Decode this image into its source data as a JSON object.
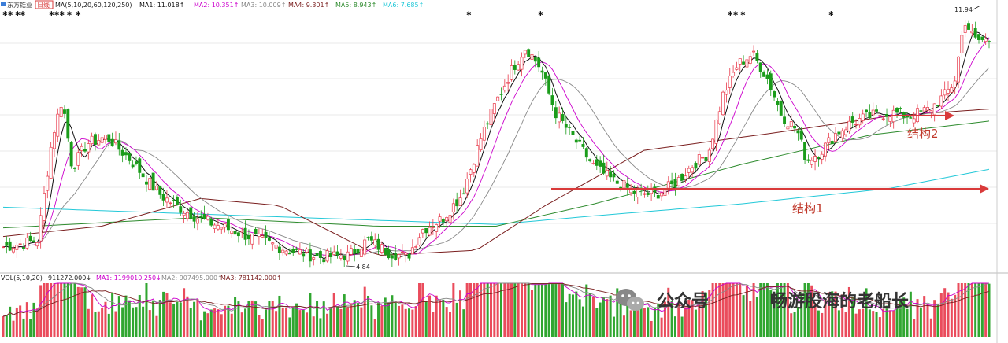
{
  "header": {
    "stock_name": "东方锆业",
    "period": "日线",
    "ma_label": "MA(5,10,20,60,120,250)",
    "ma_values": [
      {
        "label": "MA1: 11.018↑",
        "color": "#111111"
      },
      {
        "label": "MA2: 10.351↑",
        "color": "#cc00cc"
      },
      {
        "label": "MA3: 10.009↑",
        "color": "#888888"
      },
      {
        "label": "MA4: 9.301↑",
        "color": "#7a1f1f"
      },
      {
        "label": "MA5: 8.943↑",
        "color": "#2e8b2e"
      },
      {
        "label": "MA6: 7.685↑",
        "color": "#22c8d8"
      }
    ]
  },
  "volume_header": {
    "vol_label": "VOL(5,10,20)",
    "vol_value": "911272.000↓",
    "ma_values": [
      {
        "label": "MA1: 1199010.250↓",
        "color": "#cc00cc"
      },
      {
        "label": "MA2: 907495.000↑",
        "color": "#888888"
      },
      {
        "label": "MA3: 781142.000↑",
        "color": "#7a1f1f"
      }
    ]
  },
  "chart_data": {
    "type": "candlestick",
    "title": "",
    "price_annotations": {
      "high_label": "11.94",
      "low_label": "4.84"
    },
    "series_colors": {
      "up": "#e8394a",
      "down": "#1a9c1a",
      "ma5": "#111111",
      "ma10": "#cc00cc",
      "ma20": "#888888",
      "ma60": "#7a1f1f",
      "ma120": "#2e8b2e",
      "ma250": "#22c8d8"
    },
    "annotations": [
      {
        "text": "结构1",
        "arrow_color": "#d93a3a"
      },
      {
        "text": "结构2",
        "arrow_color": "#d93a3a"
      }
    ],
    "ma250_path": [
      {
        "t": 0,
        "p": 6.45
      },
      {
        "t": 0.2,
        "p": 6.25
      },
      {
        "t": 0.4,
        "p": 6.05
      },
      {
        "t": 0.5,
        "p": 5.95
      },
      {
        "t": 0.6,
        "p": 6.2
      },
      {
        "t": 0.75,
        "p": 6.55
      },
      {
        "t": 0.9,
        "p": 7.0
      },
      {
        "t": 1.0,
        "p": 7.55
      }
    ],
    "ma120_path": [
      {
        "t": 0,
        "p": 5.85
      },
      {
        "t": 0.2,
        "p": 6.15
      },
      {
        "t": 0.38,
        "p": 5.9
      },
      {
        "t": 0.5,
        "p": 5.9
      },
      {
        "t": 0.6,
        "p": 6.55
      },
      {
        "t": 0.75,
        "p": 7.7
      },
      {
        "t": 0.88,
        "p": 8.55
      },
      {
        "t": 1.0,
        "p": 8.95
      }
    ],
    "ma60_path": [
      {
        "t": 0,
        "p": 5.6
      },
      {
        "t": 0.1,
        "p": 5.9
      },
      {
        "t": 0.2,
        "p": 6.7
      },
      {
        "t": 0.28,
        "p": 6.5
      },
      {
        "t": 0.38,
        "p": 5.05
      },
      {
        "t": 0.48,
        "p": 5.2
      },
      {
        "t": 0.55,
        "p": 6.5
      },
      {
        "t": 0.65,
        "p": 8.1
      },
      {
        "t": 0.78,
        "p": 8.6
      },
      {
        "t": 0.9,
        "p": 9.1
      },
      {
        "t": 1.0,
        "p": 9.3
      }
    ],
    "price_path": [
      {
        "t": 0.0,
        "p": 5.3
      },
      {
        "t": 0.02,
        "p": 5.4
      },
      {
        "t": 0.035,
        "p": 5.5
      },
      {
        "t": 0.05,
        "p": 8.5
      },
      {
        "t": 0.06,
        "p": 9.6
      },
      {
        "t": 0.07,
        "p": 7.6
      },
      {
        "t": 0.085,
        "p": 8.3
      },
      {
        "t": 0.105,
        "p": 8.5
      },
      {
        "t": 0.13,
        "p": 7.8
      },
      {
        "t": 0.15,
        "p": 7.1
      },
      {
        "t": 0.16,
        "p": 6.8
      },
      {
        "t": 0.175,
        "p": 6.5
      },
      {
        "t": 0.2,
        "p": 6.1
      },
      {
        "t": 0.23,
        "p": 5.8
      },
      {
        "t": 0.26,
        "p": 5.5
      },
      {
        "t": 0.29,
        "p": 5.2
      },
      {
        "t": 0.32,
        "p": 5.0
      },
      {
        "t": 0.35,
        "p": 5.05
      },
      {
        "t": 0.37,
        "p": 5.5
      },
      {
        "t": 0.39,
        "p": 5.15
      },
      {
        "t": 0.41,
        "p": 5.0
      },
      {
        "t": 0.425,
        "p": 5.8
      },
      {
        "t": 0.445,
        "p": 6.1
      },
      {
        "t": 0.465,
        "p": 6.8
      },
      {
        "t": 0.485,
        "p": 8.5
      },
      {
        "t": 0.5,
        "p": 9.5
      },
      {
        "t": 0.515,
        "p": 10.4
      },
      {
        "t": 0.53,
        "p": 11.1
      },
      {
        "t": 0.545,
        "p": 10.5
      },
      {
        "t": 0.56,
        "p": 9.2
      },
      {
        "t": 0.58,
        "p": 8.4
      },
      {
        "t": 0.6,
        "p": 7.6
      },
      {
        "t": 0.62,
        "p": 7.2
      },
      {
        "t": 0.64,
        "p": 6.9
      },
      {
        "t": 0.66,
        "p": 6.8
      },
      {
        "t": 0.68,
        "p": 7.1
      },
      {
        "t": 0.7,
        "p": 7.7
      },
      {
        "t": 0.715,
        "p": 8.0
      },
      {
        "t": 0.73,
        "p": 9.7
      },
      {
        "t": 0.745,
        "p": 10.6
      },
      {
        "t": 0.76,
        "p": 10.9
      },
      {
        "t": 0.775,
        "p": 10.2
      },
      {
        "t": 0.79,
        "p": 9.1
      },
      {
        "t": 0.805,
        "p": 8.7
      },
      {
        "t": 0.815,
        "p": 7.8
      },
      {
        "t": 0.83,
        "p": 8.1
      },
      {
        "t": 0.845,
        "p": 8.6
      },
      {
        "t": 0.86,
        "p": 8.9
      },
      {
        "t": 0.88,
        "p": 9.1
      },
      {
        "t": 0.9,
        "p": 9.2
      },
      {
        "t": 0.92,
        "p": 9.1
      },
      {
        "t": 0.94,
        "p": 9.3
      },
      {
        "t": 0.955,
        "p": 9.7
      },
      {
        "t": 0.965,
        "p": 10.1
      },
      {
        "t": 0.975,
        "p": 11.9
      },
      {
        "t": 0.985,
        "p": 11.3
      }
    ]
  },
  "watermark": {
    "channel": "公众号",
    "author": "畅游股海的老船长"
  }
}
